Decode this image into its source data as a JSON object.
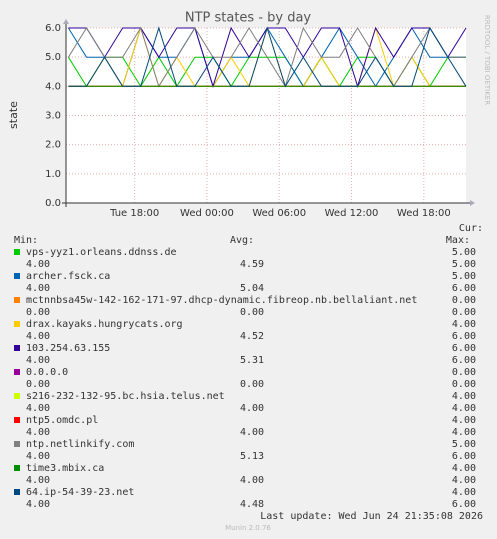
{
  "chart_data": {
    "type": "line",
    "title": "NTP states - by day",
    "y_label": "state",
    "side_text": "RRDTOOL / TOBI OETIKER",
    "footer": "Munin 2.0.76",
    "last_update": "Last update: Wed Jun 24 21:35:08 2026",
    "legend_headers": {
      "cur": "Cur:",
      "min": "Min:",
      "avg": "Avg:",
      "max": "Max:"
    },
    "grid": true,
    "xlim": [
      12.3,
      45.5
    ],
    "xticks": [
      {
        "value": 18,
        "label": "Tue 18:00"
      },
      {
        "value": 24,
        "label": "Wed 00:00"
      },
      {
        "value": 30,
        "label": "Wed 06:00"
      },
      {
        "value": 36,
        "label": "Wed 12:00"
      },
      {
        "value": 42,
        "label": "Wed 18:00"
      }
    ],
    "ylim": [
      0,
      6
    ],
    "yticks": [
      {
        "value": 0,
        "label": "0.0"
      },
      {
        "value": 1,
        "label": "1.0"
      },
      {
        "value": 2,
        "label": "2.0"
      },
      {
        "value": 3,
        "label": "3.0"
      },
      {
        "value": 4,
        "label": "4.0"
      },
      {
        "value": 5,
        "label": "5.0"
      },
      {
        "value": 6,
        "label": "6.0"
      }
    ],
    "x": [
      12.5,
      14,
      15.5,
      17,
      18.5,
      20,
      21.5,
      23,
      24.5,
      26,
      27.5,
      29,
      30.5,
      32,
      33.5,
      35,
      36.5,
      38,
      39.5,
      41,
      42.5,
      44,
      45.5
    ],
    "series": [
      {
        "name": "vps-yyz1.orleans.ddnss.de",
        "color": "#00cc00",
        "cur": "5.00",
        "min": "4.00",
        "avg": "4.59",
        "max": "5.00",
        "values": [
          5,
          4,
          5,
          5,
          4,
          5,
          4,
          5,
          5,
          4,
          5,
          5,
          5,
          4,
          5,
          4,
          5,
          5,
          4,
          5,
          4,
          5,
          5
        ]
      },
      {
        "name": "archer.fsck.ca",
        "color": "#0066b3",
        "cur": "5.00",
        "min": "4.00",
        "avg": "5.04",
        "max": "6.00",
        "values": [
          6,
          5,
          5,
          4,
          6,
          5,
          5,
          6,
          4,
          5,
          5,
          6,
          5,
          4,
          5,
          6,
          5,
          4,
          5,
          6,
          5,
          5,
          5
        ]
      },
      {
        "name": "mctnnbsa45w-142-162-171-97.dhcp-dynamic.fibreop.nb.bellaliant.net",
        "color": "#ff8000",
        "cur": "0.00",
        "min": "0.00",
        "avg": "0.00",
        "max": "0.00",
        "values": [
          0,
          0,
          0,
          0,
          0,
          0,
          0,
          0,
          0,
          0,
          0,
          0,
          0,
          0,
          0,
          0,
          0,
          0,
          0,
          0,
          0,
          0,
          0
        ]
      },
      {
        "name": "drax.kayaks.hungrycats.org",
        "color": "#ffcc00",
        "cur": "4.00",
        "min": "4.00",
        "avg": "4.52",
        "max": "6.00",
        "values": [
          4,
          4,
          5,
          4,
          6,
          4,
          5,
          4,
          4,
          5,
          4,
          6,
          4,
          4,
          5,
          4,
          4,
          6,
          4,
          5,
          4,
          4,
          4
        ]
      },
      {
        "name": "103.254.63.155",
        "color": "#330099",
        "cur": "6.00",
        "min": "4.00",
        "avg": "5.31",
        "max": "6.00",
        "values": [
          6,
          6,
          5,
          6,
          6,
          5,
          6,
          6,
          4,
          6,
          5,
          6,
          6,
          5,
          6,
          6,
          4,
          6,
          5,
          6,
          6,
          5,
          6
        ]
      },
      {
        "name": "0.0.0.0",
        "color": "#990099",
        "cur": "0.00",
        "min": "0.00",
        "avg": "0.00",
        "max": "0.00",
        "values": [
          0,
          0,
          0,
          0,
          0,
          0,
          0,
          0,
          0,
          0,
          0,
          0,
          0,
          0,
          0,
          0,
          0,
          0,
          0,
          0,
          0,
          0,
          0
        ]
      },
      {
        "name": "s216-232-132-95.bc.hsia.telus.net",
        "color": "#ccff00",
        "cur": "4.00",
        "min": "4.00",
        "avg": "4.00",
        "max": "4.00",
        "values": [
          4,
          4,
          4,
          4,
          4,
          4,
          4,
          4,
          4,
          4,
          4,
          4,
          4,
          4,
          4,
          4,
          4,
          4,
          4,
          4,
          4,
          4,
          4
        ]
      },
      {
        "name": "ntp5.omdc.pl",
        "color": "#ff0000",
        "cur": "4.00",
        "min": "4.00",
        "avg": "4.00",
        "max": "4.00",
        "values": [
          4,
          4,
          4,
          4,
          4,
          4,
          4,
          4,
          4,
          4,
          4,
          4,
          4,
          4,
          4,
          4,
          4,
          4,
          4,
          4,
          4,
          4,
          4
        ]
      },
      {
        "name": "ntp.netlinkify.com",
        "color": "#808080",
        "cur": "5.00",
        "min": "4.00",
        "avg": "5.13",
        "max": "6.00",
        "values": [
          5,
          6,
          5,
          5,
          6,
          4,
          5,
          6,
          5,
          5,
          6,
          5,
          4,
          6,
          5,
          5,
          6,
          5,
          4,
          5,
          6,
          5,
          5
        ]
      },
      {
        "name": "time3.mbix.ca",
        "color": "#008f00",
        "cur": "4.00",
        "min": "4.00",
        "avg": "4.00",
        "max": "4.00",
        "values": [
          4,
          4,
          4,
          4,
          4,
          4,
          4,
          4,
          4,
          4,
          4,
          4,
          4,
          4,
          4,
          4,
          4,
          4,
          4,
          4,
          4,
          4,
          4
        ]
      },
      {
        "name": "64.ip-54-39-23.net",
        "color": "#00487d",
        "cur": "4.00",
        "min": "4.00",
        "avg": "4.48",
        "max": "6.00",
        "values": [
          4,
          4,
          5,
          4,
          4,
          6,
          4,
          4,
          5,
          4,
          4,
          6,
          4,
          5,
          4,
          4,
          4,
          5,
          4,
          4,
          6,
          5,
          4
        ]
      }
    ]
  }
}
